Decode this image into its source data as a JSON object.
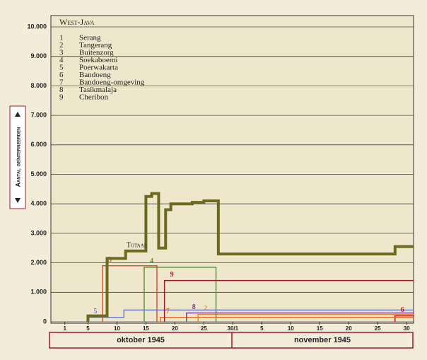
{
  "chart_data": {
    "type": "line",
    "title": "West-Java",
    "ylabel": "Aantal geïnterneerden",
    "total_label": "Totaal",
    "months": [
      "oktober 1945",
      "november 1945"
    ],
    "xlim": [
      -1.4,
      61.2
    ],
    "xticks": [
      1,
      5,
      10,
      15,
      20,
      25,
      {
        "value": 30,
        "label": "30/1"
      },
      {
        "value": 35,
        "label": "5"
      },
      {
        "value": 40,
        "label": "10"
      },
      {
        "value": 45,
        "label": "15"
      },
      {
        "value": 50,
        "label": "20"
      },
      {
        "value": 55,
        "label": "25"
      },
      {
        "value": 60,
        "label": "30"
      }
    ],
    "ylim": [
      0,
      10000
    ],
    "yticks": [
      0,
      {
        "value": 1000,
        "label": "1.000"
      },
      {
        "value": 2000,
        "label": "2.000"
      },
      {
        "value": 3000,
        "label": "3.000"
      },
      {
        "value": 4000,
        "label": "4.000"
      },
      {
        "value": 5000,
        "label": "5.000"
      },
      {
        "value": 6000,
        "label": "6.000"
      },
      {
        "value": 7000,
        "label": "7.000"
      },
      {
        "value": 8000,
        "label": "8.000"
      },
      {
        "value": 9000,
        "label": "9.000"
      },
      {
        "value": 10000,
        "label": "10.000"
      }
    ],
    "grid": true,
    "total": {
      "color": "#6b6a1e",
      "x": [
        5,
        5,
        8.3,
        8.3,
        11.5,
        11.5,
        15,
        15,
        16,
        16,
        17.2,
        17.2,
        18.4,
        18.4,
        19.3,
        19.3,
        23,
        23,
        25,
        25,
        27.5,
        27.5,
        58,
        58,
        61.2
      ],
      "values": [
        0,
        200,
        200,
        2150,
        2150,
        2400,
        2400,
        4250,
        4250,
        4350,
        4350,
        2500,
        2500,
        3800,
        3800,
        4000,
        4000,
        4050,
        4050,
        4100,
        4100,
        2300,
        2300,
        2550,
        2550
      ]
    },
    "series": [
      {
        "key": "1",
        "name": "Serang",
        "color": "#6b6a1e",
        "x": [],
        "values": []
      },
      {
        "key": "2",
        "name": "Tangerang",
        "color": "#e0902a",
        "x": [
          24,
          24,
          61.2
        ],
        "values": [
          0,
          250,
          250
        ]
      },
      {
        "key": "3",
        "name": "Buitenzorg",
        "color": "#d9553a",
        "x": [
          7.5,
          7.5,
          16.9,
          16.9
        ],
        "values": [
          0,
          1900,
          1900,
          0
        ]
      },
      {
        "key": "4",
        "name": "Soekaboemi",
        "color": "#4a9a3a",
        "x": [
          14.7,
          14.7,
          27.1,
          27.1
        ],
        "values": [
          0,
          1850,
          1850,
          0
        ]
      },
      {
        "key": "5",
        "name": "Poerwakarta",
        "color": "#6c7fd0",
        "x": [
          5,
          5,
          11.2,
          11.2,
          61.2
        ],
        "values": [
          0,
          150,
          150,
          400,
          400
        ]
      },
      {
        "key": "6",
        "name": "Bandoeng",
        "color": "#b02030",
        "x": [
          58,
          58,
          61.2
        ],
        "values": [
          0,
          200,
          200
        ]
      },
      {
        "key": "7",
        "name": "Bandoeng-omgeving",
        "color": "#e07020",
        "x": [
          17.5,
          17.5,
          61.2
        ],
        "values": [
          0,
          150,
          150
        ]
      },
      {
        "key": "8",
        "name": "Tasikmalaja",
        "color": "#8040a0",
        "x": [
          22,
          22,
          61.2
        ],
        "values": [
          0,
          300,
          300
        ]
      },
      {
        "key": "9",
        "name": "Cheribon",
        "color": "#a01830",
        "x": [
          18.2,
          18.2,
          61.2
        ],
        "values": [
          0,
          1400,
          1400
        ]
      }
    ]
  }
}
